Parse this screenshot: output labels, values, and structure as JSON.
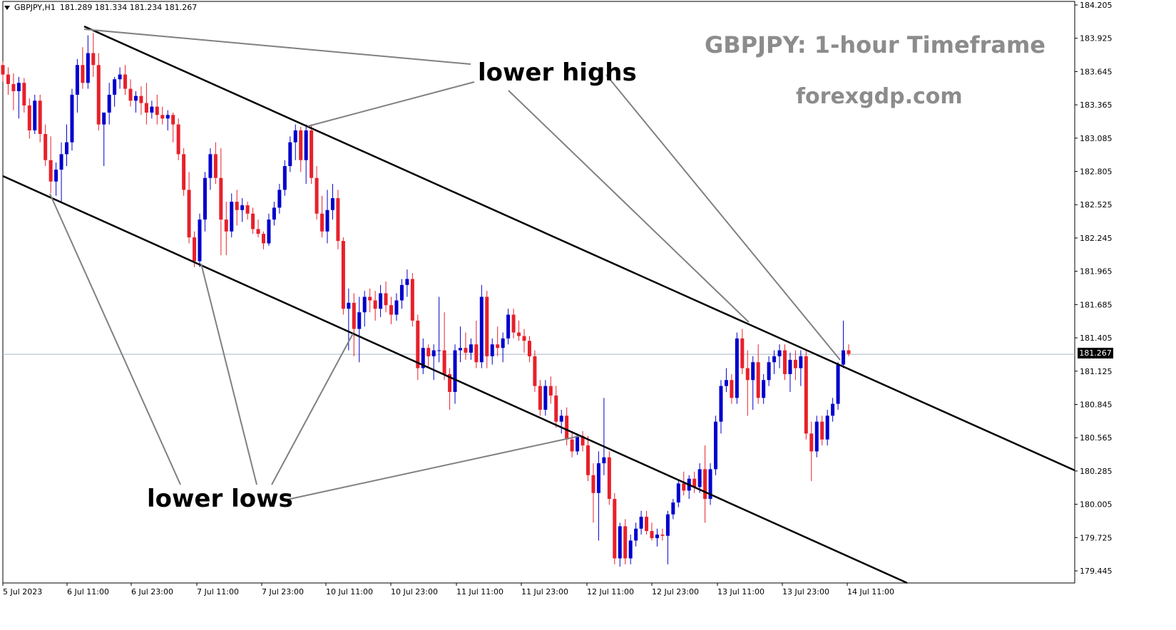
{
  "header": {
    "symbol": "GBPJPY,H1",
    "ohlc": "181.289 181.334 181.234 181.267"
  },
  "watermark": {
    "title": "GBPJPY: 1-hour Timeframe",
    "site": "forexgdp.com"
  },
  "annotations": {
    "lower_highs": "lower highs",
    "lower_lows": "lower lows"
  },
  "current_price_label": "181.267",
  "colors": {
    "bull": "#0000cd",
    "bear": "#e8202a",
    "trendline": "#000000",
    "pointer": "#808080",
    "price_line": "#a9b8c8"
  },
  "chart_data": {
    "type": "candlestick",
    "symbol": "GBPJPY",
    "timeframe": "H1",
    "ylim": [
      179.3,
      184.205
    ],
    "y_ticks": [
      "184.205",
      "183.925",
      "183.645",
      "183.365",
      "183.085",
      "182.805",
      "182.525",
      "182.245",
      "181.965",
      "181.685",
      "181.405",
      "181.267",
      "181.125",
      "180.845",
      "180.565",
      "180.285",
      "180.005",
      "179.725",
      "179.445"
    ],
    "x_ticks": [
      "5 Jul 2023",
      "6 Jul 11:00",
      "6 Jul 23:00",
      "7 Jul 11:00",
      "7 Jul 23:00",
      "10 Jul 11:00",
      "10 Jul 23:00",
      "11 Jul 11:00",
      "11 Jul 23:00",
      "12 Jul 11:00",
      "12 Jul 23:00",
      "13 Jul 11:00",
      "13 Jul 23:00",
      "14 Jul 11:00"
    ],
    "current_price": 181.267,
    "candles": [
      [
        183.7,
        183.73,
        183.56,
        183.62
      ],
      [
        183.62,
        183.68,
        183.45,
        183.54
      ],
      [
        183.54,
        183.63,
        183.32,
        183.48
      ],
      [
        183.48,
        183.6,
        183.25,
        183.55
      ],
      [
        183.55,
        183.59,
        183.3,
        183.36
      ],
      [
        183.36,
        183.42,
        183.08,
        183.15
      ],
      [
        183.15,
        183.45,
        183.12,
        183.4
      ],
      [
        183.4,
        183.45,
        183.05,
        183.12
      ],
      [
        183.12,
        183.2,
        182.85,
        182.9
      ],
      [
        182.9,
        183.1,
        182.62,
        182.72
      ],
      [
        182.72,
        182.88,
        182.6,
        182.82
      ],
      [
        182.82,
        183.05,
        182.55,
        182.95
      ],
      [
        182.95,
        183.2,
        182.85,
        183.05
      ],
      [
        183.05,
        183.5,
        182.98,
        183.45
      ],
      [
        183.45,
        183.75,
        183.3,
        183.7
      ],
      [
        183.7,
        183.85,
        183.5,
        183.55
      ],
      [
        183.55,
        183.95,
        183.5,
        183.8
      ],
      [
        183.8,
        183.97,
        183.6,
        183.7
      ],
      [
        183.7,
        183.8,
        183.15,
        183.2
      ],
      [
        183.2,
        183.3,
        182.85,
        183.3
      ],
      [
        183.3,
        183.55,
        183.2,
        183.45
      ],
      [
        183.45,
        183.6,
        183.35,
        183.58
      ],
      [
        183.58,
        183.68,
        183.5,
        183.62
      ],
      [
        183.62,
        183.7,
        183.45,
        183.5
      ],
      [
        183.5,
        183.58,
        183.35,
        183.4
      ],
      [
        183.4,
        183.48,
        183.3,
        183.44
      ],
      [
        183.44,
        183.52,
        183.28,
        183.38
      ],
      [
        183.38,
        183.55,
        183.2,
        183.3
      ],
      [
        183.3,
        183.4,
        183.25,
        183.35
      ],
      [
        183.35,
        183.45,
        183.2,
        183.28
      ],
      [
        183.28,
        183.35,
        183.2,
        183.25
      ],
      [
        183.25,
        183.32,
        183.15,
        183.28
      ],
      [
        183.28,
        183.3,
        183.05,
        183.2
      ],
      [
        183.2,
        183.25,
        182.9,
        182.95
      ],
      [
        182.95,
        183.0,
        182.6,
        182.65
      ],
      [
        182.65,
        182.8,
        182.2,
        182.25
      ],
      [
        182.25,
        182.3,
        182.0,
        182.05
      ],
      [
        182.05,
        182.45,
        182.0,
        182.4
      ],
      [
        182.4,
        182.8,
        182.3,
        182.75
      ],
      [
        182.75,
        183.0,
        182.65,
        182.95
      ],
      [
        182.95,
        183.05,
        182.7,
        182.75
      ],
      [
        182.75,
        183.0,
        182.1,
        182.4
      ],
      [
        182.4,
        182.55,
        182.1,
        182.3
      ],
      [
        182.3,
        182.62,
        182.25,
        182.55
      ],
      [
        182.55,
        182.65,
        182.35,
        182.48
      ],
      [
        182.48,
        182.58,
        182.38,
        182.52
      ],
      [
        182.52,
        182.55,
        182.4,
        182.45
      ],
      [
        182.45,
        182.5,
        182.28,
        182.32
      ],
      [
        182.32,
        182.4,
        182.25,
        182.28
      ],
      [
        182.28,
        182.3,
        182.15,
        182.2
      ],
      [
        182.2,
        182.45,
        182.18,
        182.4
      ],
      [
        182.4,
        182.55,
        182.35,
        182.5
      ],
      [
        182.5,
        182.7,
        182.45,
        182.65
      ],
      [
        182.65,
        182.9,
        182.6,
        182.85
      ],
      [
        182.85,
        183.1,
        182.8,
        183.05
      ],
      [
        183.05,
        183.2,
        182.9,
        183.15
      ],
      [
        183.15,
        183.18,
        182.8,
        182.9
      ],
      [
        182.9,
        183.2,
        182.7,
        183.15
      ],
      [
        183.15,
        183.2,
        182.7,
        182.75
      ],
      [
        182.75,
        182.85,
        182.4,
        182.45
      ],
      [
        182.45,
        182.6,
        182.25,
        182.3
      ],
      [
        182.3,
        182.65,
        182.2,
        182.48
      ],
      [
        182.48,
        182.7,
        182.4,
        182.58
      ],
      [
        182.58,
        182.65,
        182.15,
        182.22
      ],
      [
        182.22,
        182.25,
        181.6,
        181.65
      ],
      [
        181.65,
        181.82,
        181.3,
        181.7
      ],
      [
        181.7,
        181.78,
        181.25,
        181.48
      ],
      [
        181.48,
        181.75,
        181.2,
        181.62
      ],
      [
        181.62,
        181.8,
        181.5,
        181.75
      ],
      [
        181.75,
        181.82,
        181.62,
        181.72
      ],
      [
        181.72,
        181.8,
        181.55,
        181.65
      ],
      [
        181.65,
        181.85,
        181.58,
        181.78
      ],
      [
        181.78,
        181.88,
        181.62,
        181.68
      ],
      [
        181.68,
        181.75,
        181.52,
        181.6
      ],
      [
        181.6,
        181.78,
        181.55,
        181.72
      ],
      [
        181.72,
        181.9,
        181.65,
        181.85
      ],
      [
        181.85,
        181.98,
        181.75,
        181.9
      ],
      [
        181.9,
        181.95,
        181.5,
        181.55
      ],
      [
        181.55,
        181.6,
        181.05,
        181.15
      ],
      [
        181.15,
        181.4,
        181.1,
        181.32
      ],
      [
        181.32,
        181.35,
        181.15,
        181.25
      ],
      [
        181.25,
        181.35,
        181.05,
        181.3
      ],
      [
        181.3,
        181.75,
        181.2,
        181.3
      ],
      [
        181.3,
        181.62,
        181.05,
        181.1
      ],
      [
        181.1,
        181.15,
        180.8,
        180.95
      ],
      [
        180.95,
        181.35,
        180.85,
        181.3
      ],
      [
        181.3,
        181.5,
        181.2,
        181.32
      ],
      [
        181.32,
        181.45,
        181.22,
        181.28
      ],
      [
        181.28,
        181.4,
        181.22,
        181.35
      ],
      [
        181.35,
        181.55,
        181.15,
        181.2
      ],
      [
        181.2,
        181.85,
        181.15,
        181.75
      ],
      [
        181.75,
        181.8,
        181.15,
        181.25
      ],
      [
        181.25,
        181.4,
        181.18,
        181.35
      ],
      [
        181.35,
        181.5,
        181.25,
        181.32
      ],
      [
        181.32,
        181.45,
        181.2,
        181.4
      ],
      [
        181.4,
        181.65,
        181.35,
        181.6
      ],
      [
        181.6,
        181.65,
        181.4,
        181.45
      ],
      [
        181.45,
        181.55,
        181.38,
        181.42
      ],
      [
        181.42,
        181.48,
        181.28,
        181.38
      ],
      [
        181.38,
        181.42,
        181.2,
        181.25
      ],
      [
        181.25,
        181.3,
        180.95,
        181.0
      ],
      [
        181.0,
        181.05,
        180.75,
        180.8
      ],
      [
        180.8,
        181.05,
        180.75,
        181.0
      ],
      [
        181.0,
        181.08,
        180.85,
        180.92
      ],
      [
        180.92,
        181.0,
        180.65,
        180.7
      ],
      [
        180.7,
        180.8,
        180.6,
        180.75
      ],
      [
        180.75,
        180.82,
        180.5,
        180.55
      ],
      [
        180.55,
        180.62,
        180.4,
        180.45
      ],
      [
        180.45,
        180.6,
        180.42,
        180.58
      ],
      [
        180.58,
        180.62,
        180.45,
        180.5
      ],
      [
        180.5,
        180.58,
        180.2,
        180.25
      ],
      [
        180.25,
        180.35,
        179.85,
        180.1
      ],
      [
        180.1,
        180.45,
        179.7,
        180.35
      ],
      [
        180.35,
        180.9,
        180.25,
        180.4
      ],
      [
        180.4,
        180.45,
        180.0,
        180.05
      ],
      [
        180.05,
        180.1,
        179.5,
        179.55
      ],
      [
        179.55,
        179.85,
        179.48,
        179.82
      ],
      [
        179.82,
        179.88,
        179.5,
        179.55
      ],
      [
        179.55,
        179.75,
        179.5,
        179.7
      ],
      [
        179.7,
        179.85,
        179.65,
        179.8
      ],
      [
        179.8,
        179.95,
        179.75,
        179.9
      ],
      [
        179.9,
        179.95,
        179.75,
        179.78
      ],
      [
        179.78,
        179.85,
        179.7,
        179.72
      ],
      [
        179.72,
        179.8,
        179.65,
        179.75
      ],
      [
        179.75,
        179.8,
        179.7,
        179.74
      ],
      [
        179.74,
        179.95,
        179.5,
        179.92
      ],
      [
        179.92,
        180.05,
        179.88,
        180.02
      ],
      [
        180.02,
        180.2,
        179.98,
        180.18
      ],
      [
        180.18,
        180.28,
        180.08,
        180.12
      ],
      [
        180.12,
        180.25,
        180.05,
        180.22
      ],
      [
        180.22,
        180.28,
        180.1,
        180.15
      ],
      [
        180.15,
        180.35,
        180.1,
        180.3
      ],
      [
        180.3,
        180.5,
        179.85,
        180.05
      ],
      [
        180.05,
        180.35,
        180.0,
        180.3
      ],
      [
        180.3,
        180.75,
        180.25,
        180.7
      ],
      [
        180.7,
        181.05,
        180.6,
        181.0
      ],
      [
        181.0,
        181.15,
        180.95,
        181.05
      ],
      [
        181.05,
        181.1,
        180.85,
        180.9
      ],
      [
        180.9,
        181.45,
        180.85,
        181.4
      ],
      [
        181.4,
        181.48,
        181.1,
        181.15
      ],
      [
        181.15,
        181.3,
        180.75,
        181.05
      ],
      [
        181.05,
        181.25,
        180.8,
        181.2
      ],
      [
        181.2,
        181.35,
        180.85,
        180.9
      ],
      [
        180.9,
        181.1,
        180.85,
        181.05
      ],
      [
        181.05,
        181.25,
        181.0,
        181.2
      ],
      [
        181.2,
        181.3,
        181.1,
        181.25
      ],
      [
        181.25,
        181.35,
        181.15,
        181.3
      ],
      [
        181.3,
        181.35,
        181.05,
        181.1
      ],
      [
        181.1,
        181.28,
        180.95,
        181.22
      ],
      [
        181.22,
        181.3,
        181.05,
        181.15
      ],
      [
        181.15,
        181.3,
        181.0,
        181.25
      ],
      [
        181.25,
        181.3,
        180.55,
        180.6
      ],
      [
        180.6,
        180.7,
        180.2,
        180.45
      ],
      [
        180.45,
        180.75,
        180.4,
        180.7
      ],
      [
        180.7,
        180.75,
        180.5,
        180.55
      ],
      [
        180.55,
        180.8,
        180.5,
        180.75
      ],
      [
        180.75,
        180.9,
        180.7,
        180.85
      ],
      [
        180.85,
        181.2,
        180.8,
        181.18
      ],
      [
        181.18,
        181.55,
        181.15,
        181.3
      ],
      [
        181.3,
        181.35,
        181.25,
        181.27
      ]
    ]
  }
}
